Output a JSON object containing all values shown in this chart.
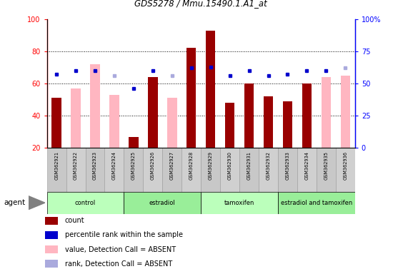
{
  "title": "GDS5278 / Mmu.15490.1.A1_at",
  "samples": [
    "GSM362921",
    "GSM362922",
    "GSM362923",
    "GSM362924",
    "GSM362925",
    "GSM362926",
    "GSM362927",
    "GSM362928",
    "GSM362929",
    "GSM362930",
    "GSM362931",
    "GSM362932",
    "GSM362933",
    "GSM362934",
    "GSM362935",
    "GSM362936"
  ],
  "count_present": [
    51,
    null,
    null,
    null,
    27,
    64,
    null,
    82,
    93,
    48,
    60,
    52,
    49,
    60,
    null,
    null
  ],
  "count_absent_value": [
    null,
    57,
    72,
    53,
    null,
    null,
    51,
    null,
    null,
    null,
    null,
    null,
    null,
    null,
    64,
    65
  ],
  "rank_present": [
    57,
    60,
    60,
    null,
    46,
    60,
    null,
    62,
    63,
    56,
    60,
    56,
    57,
    60,
    60,
    null
  ],
  "rank_absent": [
    null,
    null,
    null,
    56,
    null,
    null,
    56,
    null,
    null,
    null,
    null,
    null,
    null,
    null,
    null,
    62
  ],
  "ylim_left": [
    20,
    100
  ],
  "ylim_right": [
    0,
    100
  ],
  "left_yticks": [
    20,
    40,
    60,
    80,
    100
  ],
  "right_yticks": [
    0,
    25,
    50,
    75,
    100
  ],
  "right_yticklabels": [
    "0",
    "25",
    "50",
    "75",
    "100%"
  ],
  "groups": [
    {
      "label": "control",
      "start": 0,
      "end": 3
    },
    {
      "label": "estradiol",
      "start": 4,
      "end": 7
    },
    {
      "label": "tamoxifen",
      "start": 8,
      "end": 11
    },
    {
      "label": "estradiol and tamoxifen",
      "start": 12,
      "end": 15
    }
  ],
  "dark_red": "#990000",
  "light_pink": "#FFB6C1",
  "dark_blue": "#0000CC",
  "light_blue": "#AAAADD",
  "green_light": "#CCFFCC",
  "green_dark": "#44BB44",
  "gray_bg": "#C8C8C8",
  "legend_items": [
    {
      "color": "#990000",
      "marker": "s",
      "label": "count"
    },
    {
      "color": "#0000CC",
      "marker": "s",
      "label": "percentile rank within the sample"
    },
    {
      "color": "#FFB6C1",
      "marker": "s",
      "label": "value, Detection Call = ABSENT"
    },
    {
      "color": "#AAAADD",
      "marker": "s",
      "label": "rank, Detection Call = ABSENT"
    }
  ]
}
